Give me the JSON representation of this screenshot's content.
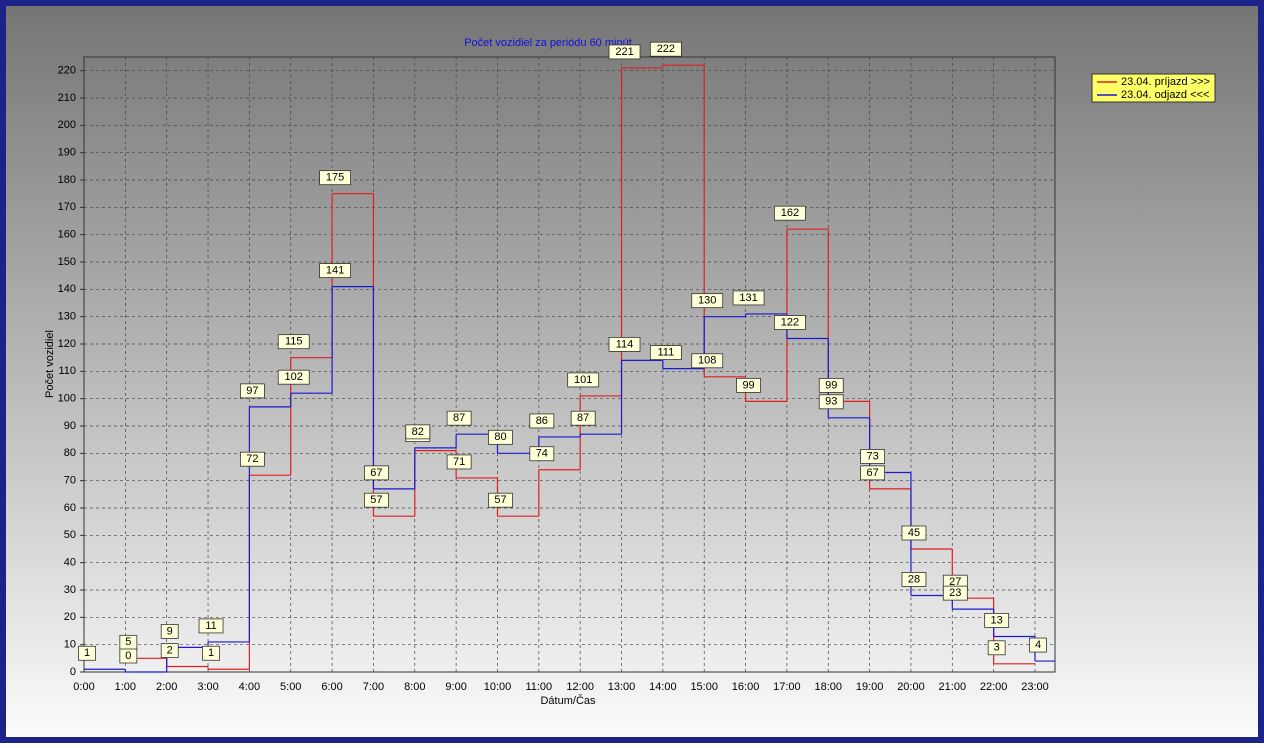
{
  "chart_data": {
    "type": "step",
    "title": "Počet vozidiel za periódu 60 minút",
    "x_label": "Dátum/Čas",
    "y_label": "Počet vozidiel",
    "categories": [
      "0:00",
      "1:00",
      "2:00",
      "3:00",
      "4:00",
      "5:00",
      "6:00",
      "7:00",
      "8:00",
      "9:00",
      "10:00",
      "11:00",
      "12:00",
      "13:00",
      "14:00",
      "15:00",
      "16:00",
      "17:00",
      "18:00",
      "19:00",
      "20:00",
      "21:00",
      "22:00",
      "23:00"
    ],
    "series": [
      {
        "name": "23.04.  príjazd >>>",
        "color": "#e02020",
        "values": [
          null,
          5,
          2,
          1,
          72,
          115,
          175,
          57,
          81,
          71,
          57,
          74,
          101,
          221,
          222,
          108,
          99,
          162,
          99,
          67,
          45,
          27,
          3,
          null
        ]
      },
      {
        "name": "23.04.  odjazd <<<",
        "color": "#1a1ad0",
        "values": [
          1,
          0,
          9,
          11,
          97,
          102,
          141,
          67,
          82,
          87,
          80,
          86,
          87,
          114,
          111,
          130,
          131,
          122,
          93,
          73,
          28,
          23,
          13,
          4
        ]
      }
    ],
    "ylim": [
      0,
      225
    ],
    "yticks": [
      0,
      10,
      20,
      30,
      40,
      50,
      60,
      70,
      80,
      90,
      100,
      110,
      120,
      130,
      140,
      150,
      160,
      170,
      180,
      190,
      200,
      210,
      220
    ],
    "grid": true
  }
}
